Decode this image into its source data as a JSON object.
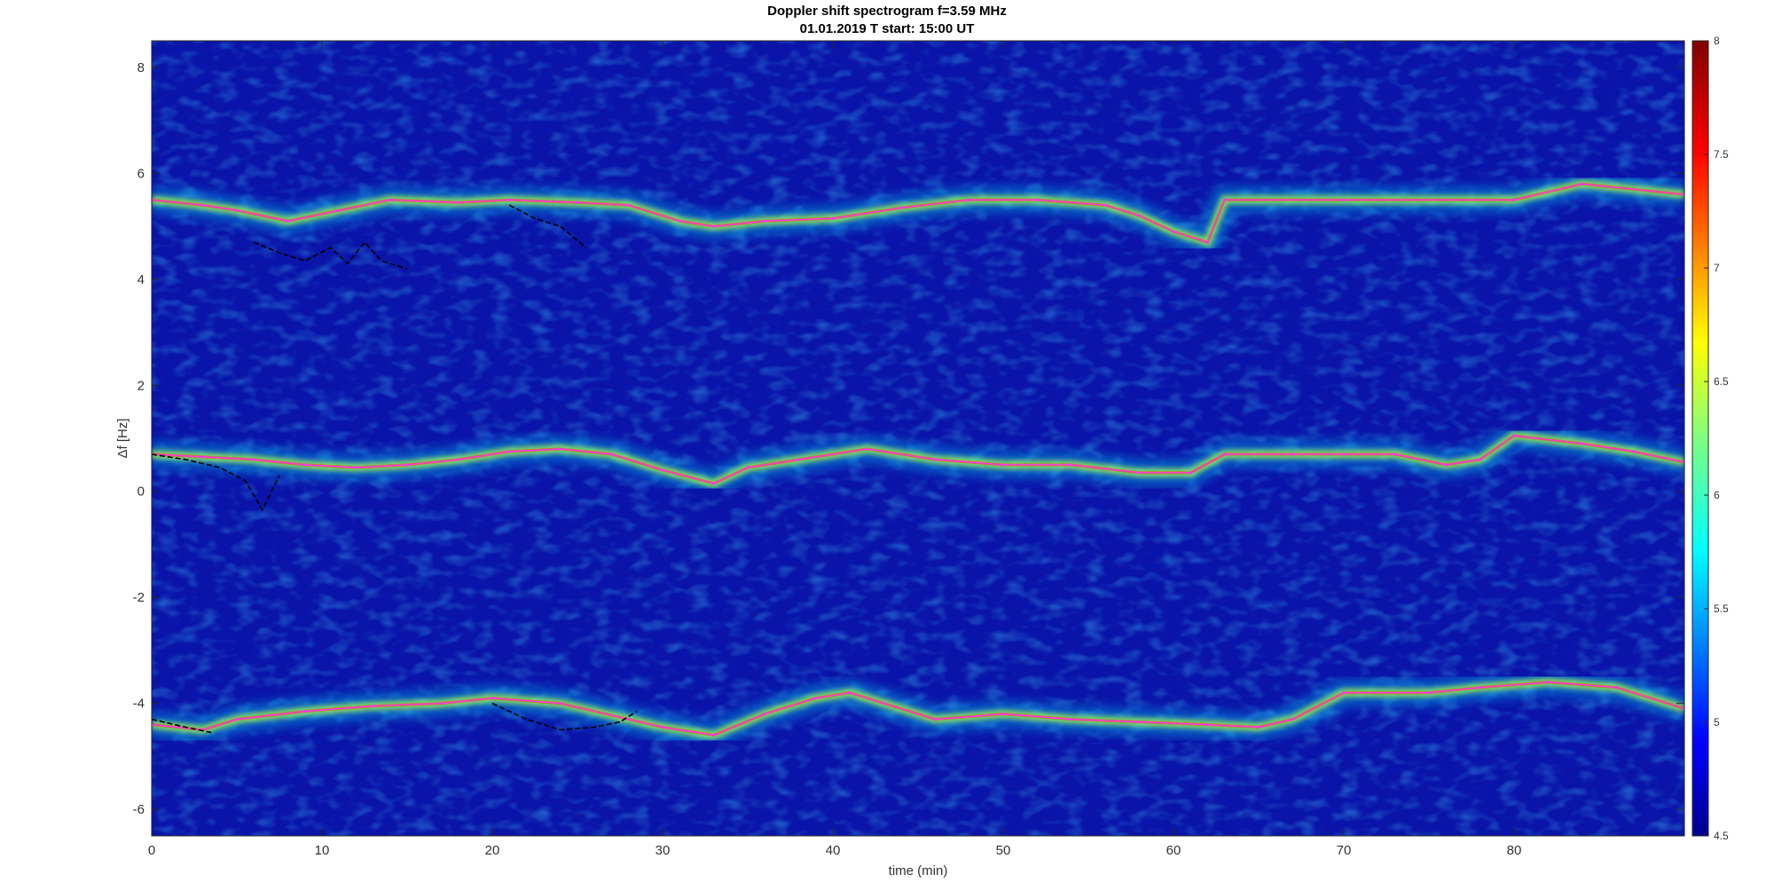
{
  "chart_data": {
    "type": "heatmap",
    "title": "Doppler shift spectrogram f=3.59 MHz",
    "subtitle": "01.01.2019   T start: 15:00 UT",
    "xlabel": "time (min)",
    "ylabel": "Δf [Hz]",
    "xlim": [
      0,
      90
    ],
    "ylim": [
      -6.5,
      8.5
    ],
    "xticks": [
      "0",
      "10",
      "20",
      "30",
      "40",
      "50",
      "60",
      "70",
      "80"
    ],
    "yticks": [
      "-6",
      "-4",
      "-2",
      "0",
      "2",
      "4",
      "6",
      "8"
    ],
    "colorbar": {
      "clim": [
        4.5,
        8
      ],
      "ticks": [
        "4.5",
        "5",
        "5.5",
        "6",
        "6.5",
        "7",
        "7.5",
        "8"
      ],
      "colormap": "jet"
    },
    "background_color": "#0a14a8",
    "series": [
      {
        "color": "#ff33ff",
        "x": [
          0,
          3,
          5,
          8,
          11,
          14,
          18,
          21,
          25,
          28,
          31,
          33,
          36,
          40,
          44,
          48,
          52,
          56,
          58,
          60,
          62,
          63,
          70,
          80,
          84,
          90
        ],
        "y": [
          5.5,
          5.4,
          5.3,
          5.1,
          5.3,
          5.5,
          5.45,
          5.5,
          5.45,
          5.4,
          5.1,
          5.0,
          5.1,
          5.15,
          5.35,
          5.5,
          5.5,
          5.4,
          5.2,
          4.9,
          4.7,
          5.5,
          5.5,
          5.5,
          5.8,
          5.6
        ]
      },
      {
        "color": "#ff33ff",
        "x": [
          0,
          3,
          6,
          9,
          12,
          15,
          18,
          21,
          24,
          27,
          30,
          33,
          35,
          38,
          42,
          46,
          50,
          54,
          58,
          61,
          63,
          67,
          70,
          73,
          76,
          78,
          80,
          84,
          87,
          90
        ],
        "y": [
          0.7,
          0.65,
          0.6,
          0.5,
          0.45,
          0.5,
          0.6,
          0.75,
          0.8,
          0.7,
          0.4,
          0.15,
          0.45,
          0.6,
          0.8,
          0.6,
          0.5,
          0.5,
          0.35,
          0.35,
          0.7,
          0.7,
          0.7,
          0.7,
          0.5,
          0.6,
          1.05,
          0.9,
          0.75,
          0.55
        ]
      },
      {
        "color": "#ff33ff",
        "x": [
          0,
          3,
          5,
          9,
          13,
          17,
          20,
          24,
          28,
          30,
          33,
          36,
          39,
          41,
          43,
          46,
          50,
          54,
          58,
          62,
          65,
          67,
          70,
          75,
          78,
          82,
          86,
          90
        ],
        "y": [
          -4.4,
          -4.5,
          -4.3,
          -4.15,
          -4.05,
          -4.0,
          -3.9,
          -4.0,
          -4.3,
          -4.45,
          -4.6,
          -4.2,
          -3.9,
          -3.8,
          -4.0,
          -4.3,
          -4.2,
          -4.3,
          -4.35,
          -4.4,
          -4.45,
          -4.3,
          -3.8,
          -3.8,
          -3.7,
          -3.6,
          -3.7,
          -4.1
        ]
      },
      {
        "color": "#000000",
        "x": [
          6,
          7.5,
          9,
          10.5,
          11.5,
          12.5,
          13.5,
          15
        ],
        "y": [
          4.7,
          4.5,
          4.35,
          4.6,
          4.3,
          4.7,
          4.35,
          4.2
        ]
      },
      {
        "color": "#000000",
        "x": [
          21,
          22.5,
          24,
          25.5
        ],
        "y": [
          5.4,
          5.15,
          5.0,
          4.6
        ]
      },
      {
        "color": "#000000",
        "x": [
          0,
          2,
          4,
          5.5,
          6.5,
          7.5
        ],
        "y": [
          0.7,
          0.6,
          0.45,
          0.2,
          -0.35,
          0.3
        ]
      },
      {
        "color": "#000000",
        "x": [
          20,
          22,
          24,
          26,
          27.5,
          28.5
        ],
        "y": [
          -4.0,
          -4.3,
          -4.5,
          -4.45,
          -4.35,
          -4.15
        ]
      },
      {
        "color": "#000000",
        "x": [
          0,
          2,
          3.5
        ],
        "y": [
          -4.3,
          -4.45,
          -4.55
        ]
      }
    ]
  }
}
